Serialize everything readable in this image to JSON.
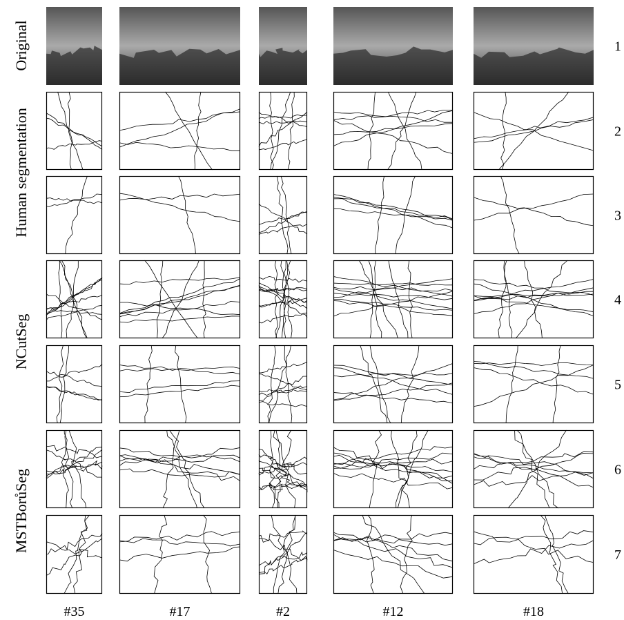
{
  "row_labels": [
    "Original",
    "Human segmentation",
    "NCutSeg",
    "MSTBorůSeg"
  ],
  "row_numbers": [
    "1",
    "2",
    "3",
    "4",
    "5",
    "6",
    "7"
  ],
  "column_labels": [
    "#35",
    "#17",
    "#2",
    "#12",
    "#18"
  ]
}
